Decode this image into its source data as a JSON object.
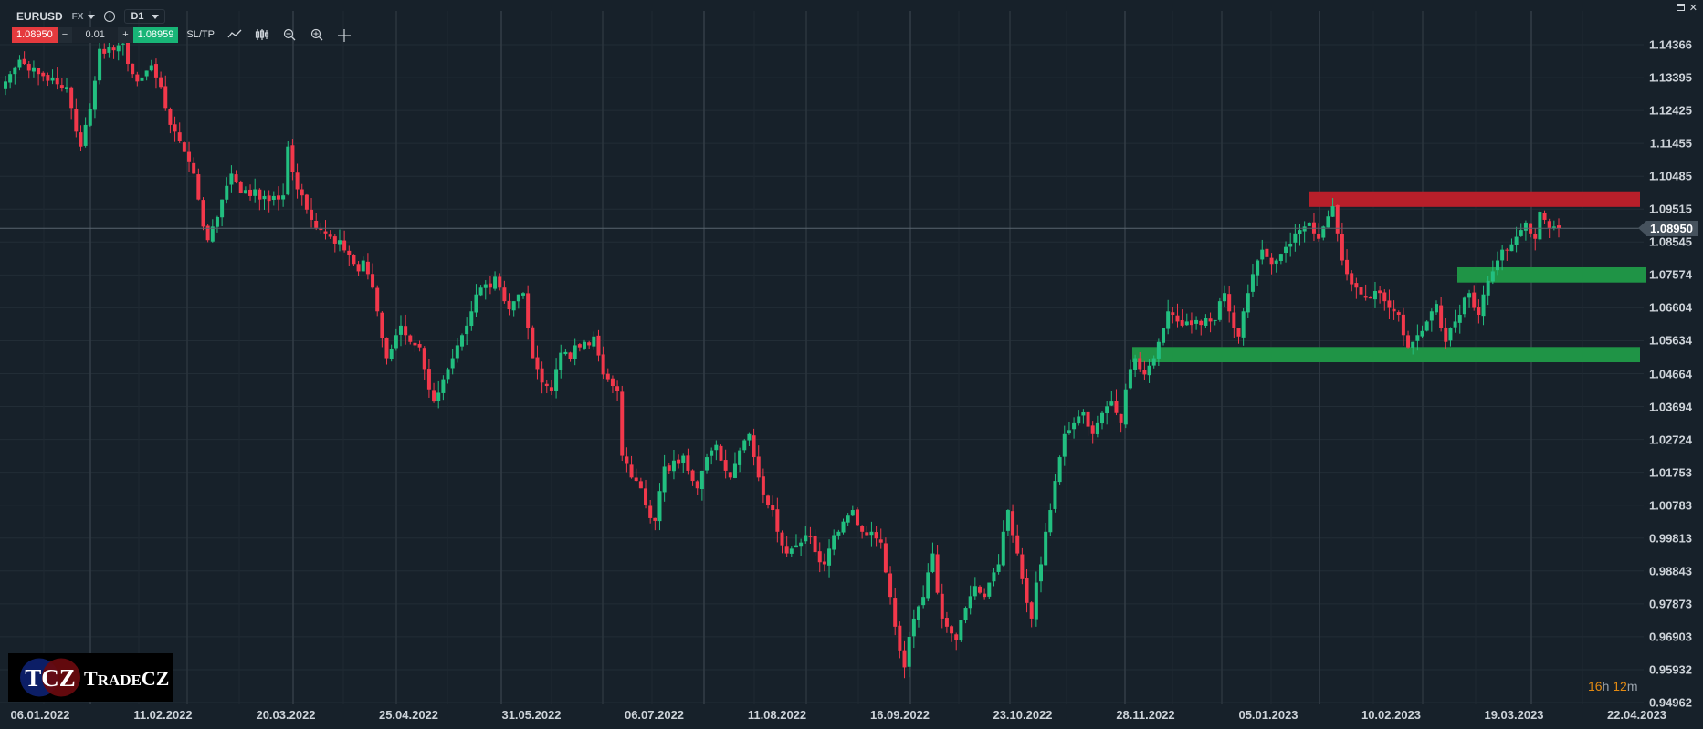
{
  "header": {
    "symbol": "EURUSD",
    "market": "FX",
    "timeframe": "D1"
  },
  "trade": {
    "sell_price": "1.08950",
    "quantity": "0.01",
    "minus": "−",
    "plus": "+",
    "buy_price": "1.08959",
    "sltp_label": "SL/TP"
  },
  "tools": [
    "line-chart-icon",
    "candles-icon",
    "zoom-out-icon",
    "zoom-in-icon",
    "crosshair-icon"
  ],
  "current_price": "1.08950",
  "timer": {
    "hours": "16",
    "h": "h",
    "minutes": "12",
    "m": "m"
  },
  "logo": {
    "text": "TCZ TradeCZ"
  },
  "colors": {
    "background": "#17212a",
    "up": "#22bf80",
    "down": "#f2384b",
    "resistance_zone": "#b81f2a",
    "support_zone": "#1f9446",
    "timer": "#e38a12"
  },
  "chart_data": {
    "type": "candlestick",
    "symbol": "EURUSD",
    "y_ticks": [
      "1.14366",
      "1.13395",
      "1.12425",
      "1.11455",
      "1.10485",
      "1.09515",
      "1.08545",
      "1.07574",
      "1.06604",
      "1.05634",
      "1.04664",
      "1.03694",
      "1.02724",
      "1.01753",
      "1.00783",
      "0.99813",
      "0.98843",
      "0.97873",
      "0.96903",
      "0.95932",
      "0.94962"
    ],
    "ylim": [
      0.94962,
      1.14366
    ],
    "x_ticks": [
      "06.01.2022",
      "11.02.2022",
      "20.03.2022",
      "25.04.2022",
      "31.05.2022",
      "06.07.2022",
      "11.08.2022",
      "16.09.2022",
      "23.10.2022",
      "28.11.2022",
      "05.01.2023",
      "10.02.2023",
      "19.03.2023",
      "22.04.2023"
    ],
    "grid": true,
    "zones": [
      {
        "type": "resistance",
        "from": 1.0958,
        "to": 1.1004,
        "start": "05.01.2023"
      },
      {
        "type": "support",
        "from": 1.0735,
        "to": 1.078,
        "start": "19.03.2023"
      },
      {
        "type": "support",
        "from": 1.05,
        "to": 1.0545,
        "start": "28.11.2022"
      }
    ],
    "close": [
      1.1328,
      1.135,
      1.137,
      1.1392,
      1.138,
      1.136,
      1.137,
      1.135,
      1.1344,
      1.133,
      1.134,
      1.132,
      1.131,
      1.1312,
      1.125,
      1.118,
      1.1136,
      1.12,
      1.1248,
      1.133,
      1.1424,
      1.141,
      1.143,
      1.142,
      1.1435,
      1.144,
      1.138,
      1.135,
      1.1328,
      1.134,
      1.136,
      1.1376,
      1.134,
      1.1312,
      1.125,
      1.12,
      1.118,
      1.1152,
      1.112,
      1.109,
      1.1056,
      1.098,
      1.09,
      1.086,
      1.09,
      1.0928,
      1.098,
      1.102,
      1.1056,
      1.103,
      1.1,
      1.1008,
      1.099,
      1.101,
      1.098,
      1.099,
      1.0976,
      1.099,
      1.098,
      1.0992,
      1.1136,
      1.106,
      1.101,
      1.0992,
      1.095,
      1.092,
      1.0896,
      1.089,
      1.088,
      1.087,
      1.085,
      1.086,
      1.083,
      1.0816,
      1.079,
      1.0768,
      1.08,
      1.076,
      1.072,
      1.065,
      1.057,
      1.0512,
      1.054,
      1.058,
      1.0608,
      1.058,
      1.056,
      1.055,
      1.0544,
      1.048,
      1.042,
      1.0384,
      1.041,
      1.045,
      1.048,
      1.0512,
      1.055,
      1.058,
      1.0608,
      1.065,
      1.07,
      1.072,
      1.073,
      1.072,
      1.0752,
      1.072,
      1.068,
      1.0656,
      1.068,
      1.07,
      1.0704,
      1.06,
      1.0512,
      1.048,
      1.044,
      1.043,
      1.0416,
      1.048,
      1.0528,
      1.053,
      1.051,
      1.055,
      1.0544,
      1.056,
      1.055,
      1.0576,
      1.052,
      1.0464,
      1.045,
      1.043,
      1.0416,
      1.0224,
      1.02,
      1.016,
      1.015,
      1.0128,
      1.008,
      1.004,
      1.0032,
      1.012,
      1.0192,
      1.018,
      1.021,
      1.02,
      1.0224,
      1.018,
      1.015,
      1.0128,
      1.018,
      1.022,
      1.024,
      1.0256,
      1.021,
      1.018,
      1.016,
      1.02,
      1.024,
      1.027,
      1.0288,
      1.022,
      1.016,
      1.011,
      1.008,
      1.0064,
      1.0,
      0.996,
      0.9936,
      0.995,
      0.996,
      0.9968,
      0.999,
      0.9984,
      0.994,
      0.991,
      0.9904,
      0.995,
      0.999,
      1.0,
      1.003,
      1.005,
      1.0064,
      1.002,
      1.0,
      0.999,
      1.0,
      0.998,
      0.9968,
      0.988,
      0.9808,
      0.972,
      0.965,
      0.96,
      0.969,
      0.9744,
      0.978,
      0.9808,
      0.988,
      0.9936,
      0.982,
      0.9744,
      0.972,
      0.97,
      0.968,
      0.974,
      0.9776,
      0.981,
      0.984,
      0.982,
      0.9808,
      0.985,
      0.988,
      0.9904,
      1.0,
      1.0064,
      0.999,
      0.9936,
      0.986,
      0.979,
      0.9744,
      0.985,
      0.9904,
      1.0,
      1.0064,
      1.015,
      1.022,
      1.0288,
      1.03,
      1.032,
      1.034,
      1.0352,
      1.031,
      1.0288,
      1.032,
      1.035,
      1.037,
      1.0384,
      1.035,
      1.032,
      1.042,
      1.048,
      1.0512,
      1.048,
      1.0464,
      1.049,
      1.0512,
      1.056,
      1.06,
      1.065,
      1.064,
      1.062,
      1.0608,
      1.062,
      1.061,
      1.0624,
      1.061,
      1.063,
      1.062,
      1.0624,
      1.068,
      1.0704,
      1.065,
      1.06,
      1.0576,
      1.065,
      1.0704,
      1.076,
      1.08,
      1.0832,
      1.081,
      1.079,
      1.08,
      1.082,
      1.084,
      1.085,
      1.088,
      1.089,
      1.09,
      1.0912,
      1.088,
      1.0864,
      1.09,
      1.093,
      1.096,
      1.088,
      1.08,
      1.076,
      1.073,
      1.072,
      1.07,
      1.069,
      1.0688,
      1.071,
      1.0704,
      1.068,
      1.066,
      1.065,
      1.064,
      1.058,
      1.0544,
      1.056,
      1.058,
      1.0592,
      1.062,
      1.065,
      1.0672,
      1.06,
      1.056,
      1.06,
      1.062,
      1.064,
      1.069,
      1.0704,
      1.066,
      1.064,
      1.07,
      1.074,
      1.0768,
      1.08,
      1.0832,
      1.083,
      1.0848,
      1.087,
      1.089,
      1.0912,
      1.088,
      1.0864,
      1.0944,
      1.092,
      1.0896,
      1.09,
      1.0895
    ]
  }
}
